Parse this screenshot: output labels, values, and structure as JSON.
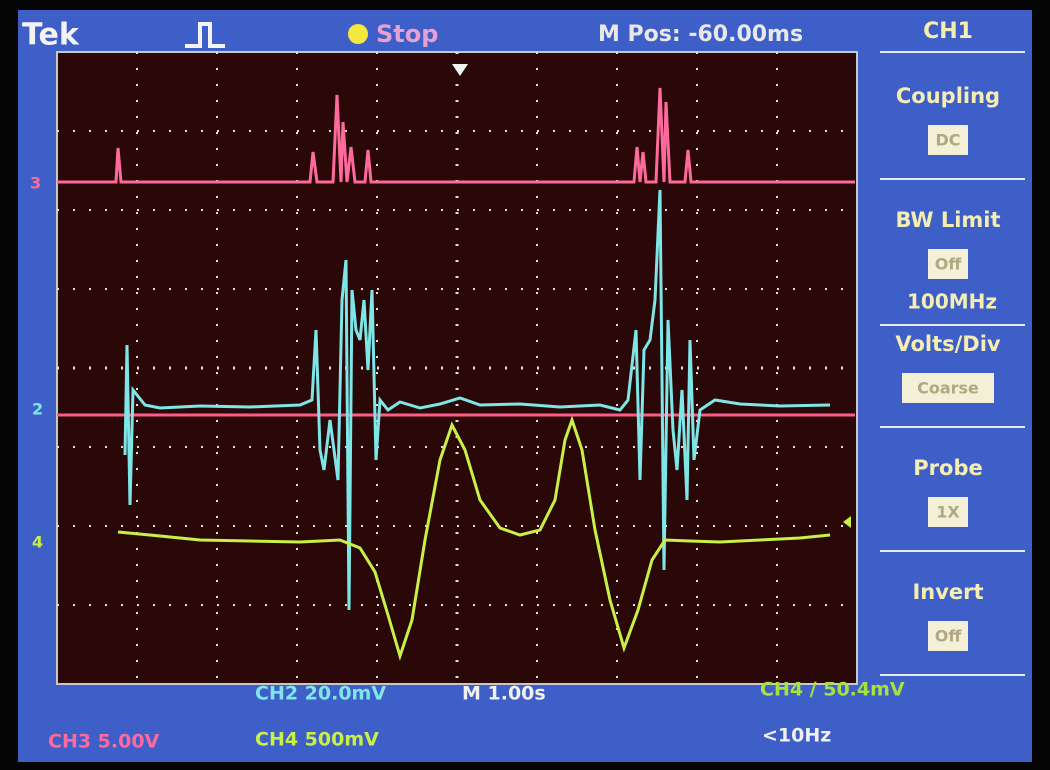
{
  "header": {
    "brand": "Tek",
    "status": "Stop",
    "position": "M Pos: -60.00ms"
  },
  "menu": {
    "title": "CH1",
    "items": [
      {
        "label": "Coupling",
        "value": "DC"
      },
      {
        "label": "BW Limit",
        "value": "Off",
        "note": "100MHz"
      },
      {
        "label": "Volts/Div",
        "value": "Coarse"
      },
      {
        "label": "Probe",
        "value": "1X"
      },
      {
        "label": "Invert",
        "value": "Off"
      }
    ]
  },
  "markers": {
    "ch3": "3",
    "ch2": "2",
    "ch4": "4"
  },
  "footer": {
    "ch2_scale": "CH2  20.0mV",
    "timebase": "M 1.00s",
    "trigger": "CH4 ∕ 50.4mV",
    "ch3_scale": "CH3  5.00V",
    "ch4_scale": "CH4  500mV",
    "frequency": "<10Hz"
  }
}
